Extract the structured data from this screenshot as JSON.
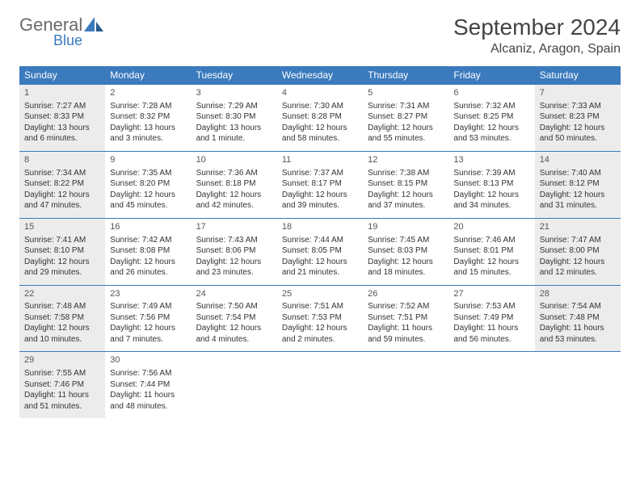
{
  "logo": {
    "main": "General",
    "sub": "Blue"
  },
  "title": "September 2024",
  "location": "Alcaniz, Aragon, Spain",
  "colors": {
    "accent": "#3a7abd",
    "shade": "#ececec",
    "text": "#333333"
  },
  "weekdays": [
    "Sunday",
    "Monday",
    "Tuesday",
    "Wednesday",
    "Thursday",
    "Friday",
    "Saturday"
  ],
  "weeks": [
    [
      {
        "n": "1",
        "sr": "Sunrise: 7:27 AM",
        "ss": "Sunset: 8:33 PM",
        "dl": "Daylight: 13 hours and 6 minutes.",
        "sh": true
      },
      {
        "n": "2",
        "sr": "Sunrise: 7:28 AM",
        "ss": "Sunset: 8:32 PM",
        "dl": "Daylight: 13 hours and 3 minutes.",
        "sh": false
      },
      {
        "n": "3",
        "sr": "Sunrise: 7:29 AM",
        "ss": "Sunset: 8:30 PM",
        "dl": "Daylight: 13 hours and 1 minute.",
        "sh": false
      },
      {
        "n": "4",
        "sr": "Sunrise: 7:30 AM",
        "ss": "Sunset: 8:28 PM",
        "dl": "Daylight: 12 hours and 58 minutes.",
        "sh": false
      },
      {
        "n": "5",
        "sr": "Sunrise: 7:31 AM",
        "ss": "Sunset: 8:27 PM",
        "dl": "Daylight: 12 hours and 55 minutes.",
        "sh": false
      },
      {
        "n": "6",
        "sr": "Sunrise: 7:32 AM",
        "ss": "Sunset: 8:25 PM",
        "dl": "Daylight: 12 hours and 53 minutes.",
        "sh": false
      },
      {
        "n": "7",
        "sr": "Sunrise: 7:33 AM",
        "ss": "Sunset: 8:23 PM",
        "dl": "Daylight: 12 hours and 50 minutes.",
        "sh": true
      }
    ],
    [
      {
        "n": "8",
        "sr": "Sunrise: 7:34 AM",
        "ss": "Sunset: 8:22 PM",
        "dl": "Daylight: 12 hours and 47 minutes.",
        "sh": true
      },
      {
        "n": "9",
        "sr": "Sunrise: 7:35 AM",
        "ss": "Sunset: 8:20 PM",
        "dl": "Daylight: 12 hours and 45 minutes.",
        "sh": false
      },
      {
        "n": "10",
        "sr": "Sunrise: 7:36 AM",
        "ss": "Sunset: 8:18 PM",
        "dl": "Daylight: 12 hours and 42 minutes.",
        "sh": false
      },
      {
        "n": "11",
        "sr": "Sunrise: 7:37 AM",
        "ss": "Sunset: 8:17 PM",
        "dl": "Daylight: 12 hours and 39 minutes.",
        "sh": false
      },
      {
        "n": "12",
        "sr": "Sunrise: 7:38 AM",
        "ss": "Sunset: 8:15 PM",
        "dl": "Daylight: 12 hours and 37 minutes.",
        "sh": false
      },
      {
        "n": "13",
        "sr": "Sunrise: 7:39 AM",
        "ss": "Sunset: 8:13 PM",
        "dl": "Daylight: 12 hours and 34 minutes.",
        "sh": false
      },
      {
        "n": "14",
        "sr": "Sunrise: 7:40 AM",
        "ss": "Sunset: 8:12 PM",
        "dl": "Daylight: 12 hours and 31 minutes.",
        "sh": true
      }
    ],
    [
      {
        "n": "15",
        "sr": "Sunrise: 7:41 AM",
        "ss": "Sunset: 8:10 PM",
        "dl": "Daylight: 12 hours and 29 minutes.",
        "sh": true
      },
      {
        "n": "16",
        "sr": "Sunrise: 7:42 AM",
        "ss": "Sunset: 8:08 PM",
        "dl": "Daylight: 12 hours and 26 minutes.",
        "sh": false
      },
      {
        "n": "17",
        "sr": "Sunrise: 7:43 AM",
        "ss": "Sunset: 8:06 PM",
        "dl": "Daylight: 12 hours and 23 minutes.",
        "sh": false
      },
      {
        "n": "18",
        "sr": "Sunrise: 7:44 AM",
        "ss": "Sunset: 8:05 PM",
        "dl": "Daylight: 12 hours and 21 minutes.",
        "sh": false
      },
      {
        "n": "19",
        "sr": "Sunrise: 7:45 AM",
        "ss": "Sunset: 8:03 PM",
        "dl": "Daylight: 12 hours and 18 minutes.",
        "sh": false
      },
      {
        "n": "20",
        "sr": "Sunrise: 7:46 AM",
        "ss": "Sunset: 8:01 PM",
        "dl": "Daylight: 12 hours and 15 minutes.",
        "sh": false
      },
      {
        "n": "21",
        "sr": "Sunrise: 7:47 AM",
        "ss": "Sunset: 8:00 PM",
        "dl": "Daylight: 12 hours and 12 minutes.",
        "sh": true
      }
    ],
    [
      {
        "n": "22",
        "sr": "Sunrise: 7:48 AM",
        "ss": "Sunset: 7:58 PM",
        "dl": "Daylight: 12 hours and 10 minutes.",
        "sh": true
      },
      {
        "n": "23",
        "sr": "Sunrise: 7:49 AM",
        "ss": "Sunset: 7:56 PM",
        "dl": "Daylight: 12 hours and 7 minutes.",
        "sh": false
      },
      {
        "n": "24",
        "sr": "Sunrise: 7:50 AM",
        "ss": "Sunset: 7:54 PM",
        "dl": "Daylight: 12 hours and 4 minutes.",
        "sh": false
      },
      {
        "n": "25",
        "sr": "Sunrise: 7:51 AM",
        "ss": "Sunset: 7:53 PM",
        "dl": "Daylight: 12 hours and 2 minutes.",
        "sh": false
      },
      {
        "n": "26",
        "sr": "Sunrise: 7:52 AM",
        "ss": "Sunset: 7:51 PM",
        "dl": "Daylight: 11 hours and 59 minutes.",
        "sh": false
      },
      {
        "n": "27",
        "sr": "Sunrise: 7:53 AM",
        "ss": "Sunset: 7:49 PM",
        "dl": "Daylight: 11 hours and 56 minutes.",
        "sh": false
      },
      {
        "n": "28",
        "sr": "Sunrise: 7:54 AM",
        "ss": "Sunset: 7:48 PM",
        "dl": "Daylight: 11 hours and 53 minutes.",
        "sh": true
      }
    ],
    [
      {
        "n": "29",
        "sr": "Sunrise: 7:55 AM",
        "ss": "Sunset: 7:46 PM",
        "dl": "Daylight: 11 hours and 51 minutes.",
        "sh": true
      },
      {
        "n": "30",
        "sr": "Sunrise: 7:56 AM",
        "ss": "Sunset: 7:44 PM",
        "dl": "Daylight: 11 hours and 48 minutes.",
        "sh": false
      },
      null,
      null,
      null,
      null,
      null
    ]
  ]
}
